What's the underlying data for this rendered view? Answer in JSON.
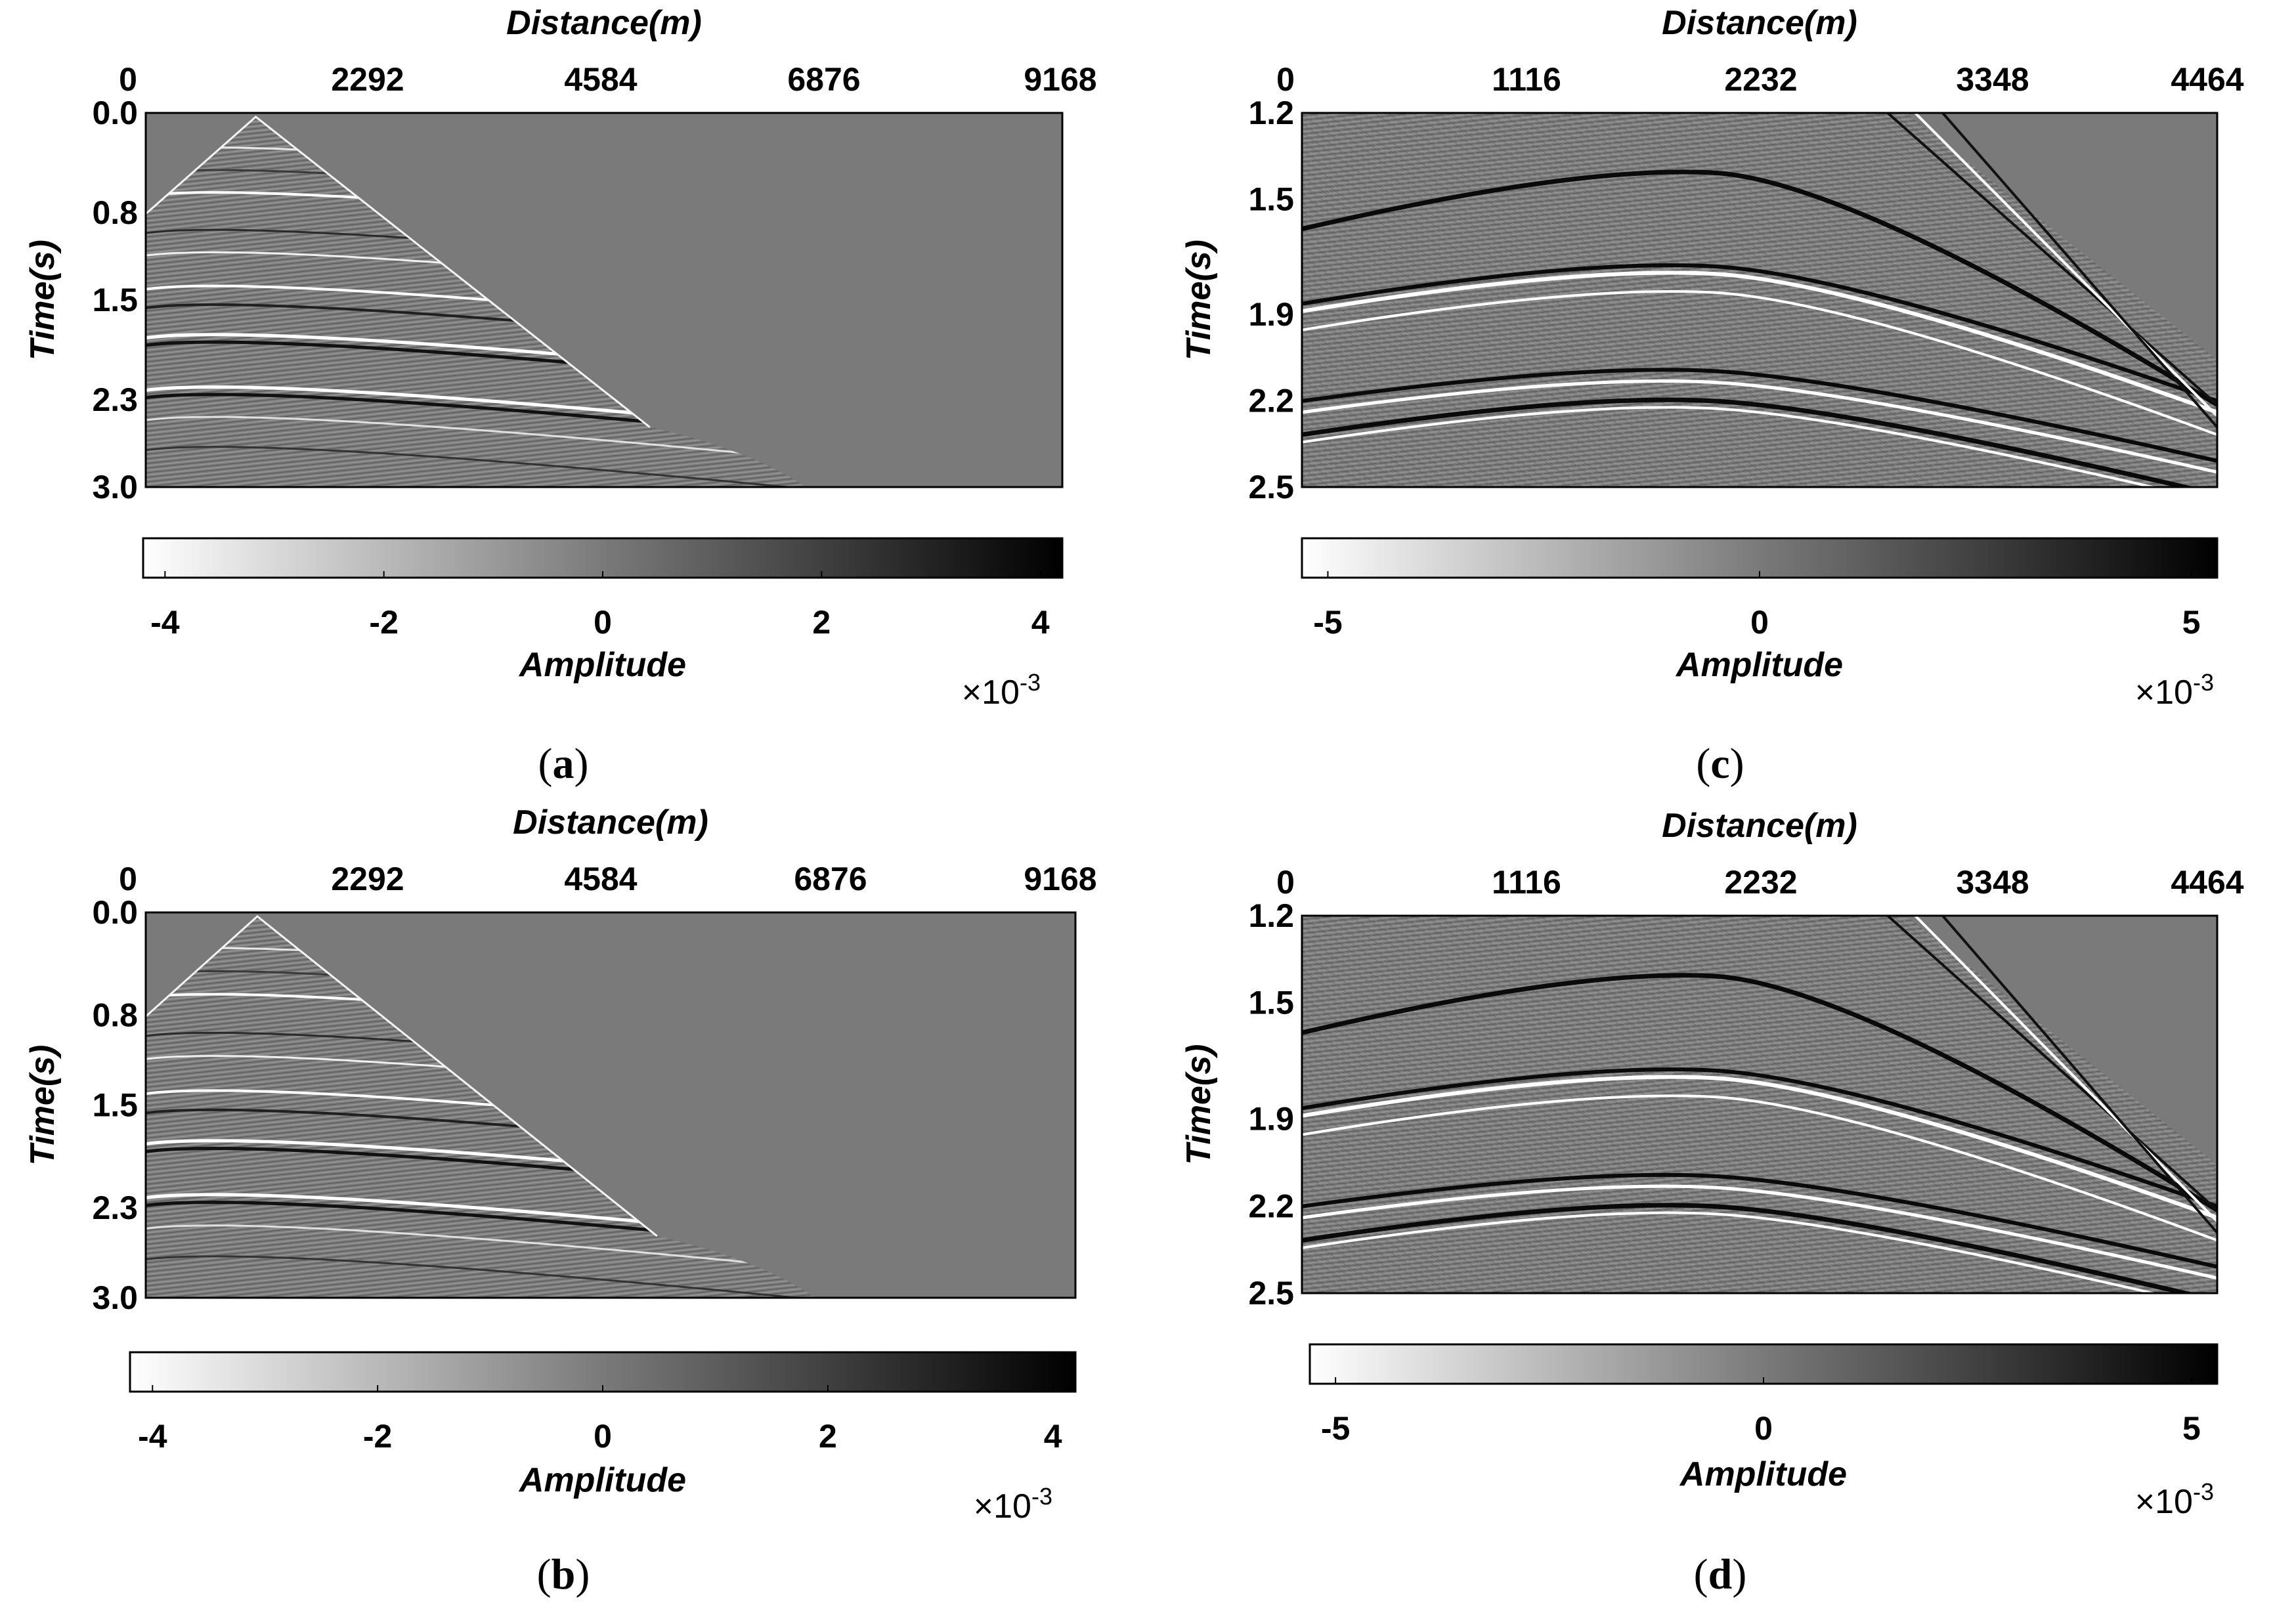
{
  "chart_data": [
    {
      "panel": "a",
      "type": "heatmap",
      "caption_letter": "a",
      "xlabel": "Distance(m)",
      "ylabel": "Time(s)",
      "xticks": [
        "0",
        "2292",
        "4584",
        "6876",
        "9168"
      ],
      "yticks": [
        "0.0",
        "0.8",
        "1.5",
        "2.3",
        "3.0"
      ],
      "xlim": [
        0,
        9168
      ],
      "ylim": [
        0,
        3.0
      ],
      "colorbar": {
        "label": "Amplitude",
        "ticks": [
          "-4",
          "-2",
          "0",
          "2",
          "4"
        ],
        "tick_values": [
          -4,
          -2,
          0,
          2,
          4
        ],
        "range": [
          -4.2,
          4.2
        ],
        "multiplier": "×10",
        "exponent": "-3",
        "colormap": "white-gray-black"
      }
    },
    {
      "panel": "b",
      "type": "heatmap",
      "caption_letter": "b",
      "xlabel": "Distance(m)",
      "ylabel": "Time(s)",
      "xticks": [
        "0",
        "2292",
        "4584",
        "6876",
        "9168"
      ],
      "yticks": [
        "0.0",
        "0.8",
        "1.5",
        "2.3",
        "3.0"
      ],
      "xlim": [
        0,
        9168
      ],
      "ylim": [
        0,
        3.0
      ],
      "colorbar": {
        "label": "Amplitude",
        "ticks": [
          "-4",
          "-2",
          "0",
          "2",
          "4"
        ],
        "tick_values": [
          -4,
          -2,
          0,
          2,
          4
        ],
        "range": [
          -4.2,
          4.2
        ],
        "multiplier": "×10",
        "exponent": "-3",
        "colormap": "white-gray-black"
      }
    },
    {
      "panel": "c",
      "type": "heatmap",
      "caption_letter": "c",
      "xlabel": "Distance(m)",
      "ylabel": "Time(s)",
      "xticks": [
        "0",
        "1116",
        "2232",
        "3348",
        "4464"
      ],
      "yticks": [
        "1.2",
        "1.5",
        "1.9",
        "2.2",
        "2.5"
      ],
      "xlim": [
        0,
        4464
      ],
      "ylim": [
        1.2,
        2.5
      ],
      "colorbar": {
        "label": "Amplitude",
        "ticks": [
          "-5",
          "0",
          "5"
        ],
        "tick_values": [
          -5,
          0,
          5
        ],
        "range": [
          -5.3,
          5.3
        ],
        "multiplier": "×10",
        "exponent": "-3",
        "colormap": "white-gray-black"
      }
    },
    {
      "panel": "d",
      "type": "heatmap",
      "caption_letter": "d",
      "xlabel": "Distance(m)",
      "ylabel": "Time(s)",
      "xticks": [
        "0",
        "1116",
        "2232",
        "3348",
        "4464"
      ],
      "yticks": [
        "1.2",
        "1.5",
        "1.9",
        "2.2",
        "2.5"
      ],
      "xlim": [
        0,
        4464
      ],
      "ylim": [
        1.2,
        2.5
      ],
      "colorbar": {
        "label": "Amplitude",
        "ticks": [
          "-5",
          "0",
          "5"
        ],
        "tick_values": [
          -5,
          0,
          5
        ],
        "range": [
          -5.3,
          5.3
        ],
        "multiplier": "×10",
        "exponent": "-3",
        "colormap": "white-gray-black"
      }
    }
  ],
  "colors": {
    "background": "#ffffff",
    "seismic_fill": "#7a7a7a",
    "axis": "#000000",
    "colormap_low": "#ffffff",
    "colormap_high": "#000000"
  }
}
